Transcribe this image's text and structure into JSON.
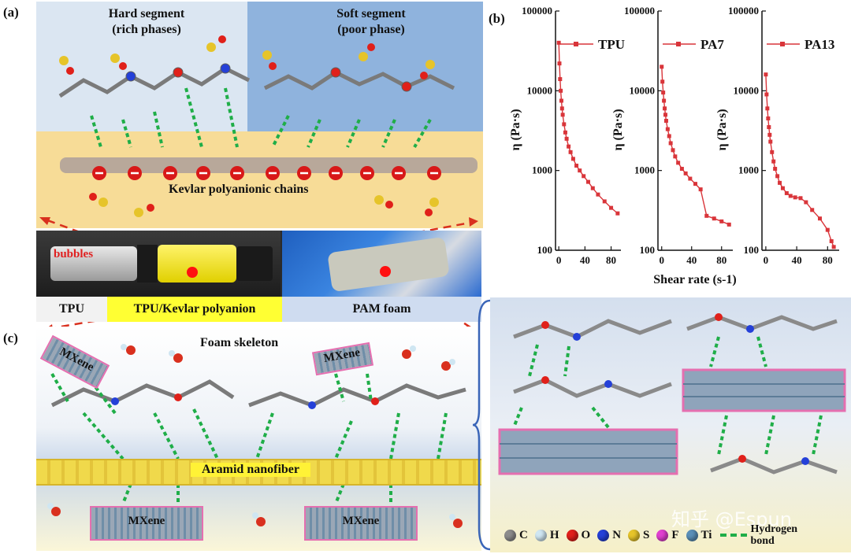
{
  "panel_labels": {
    "a": "(a)",
    "b": "(b)",
    "c": "(c)"
  },
  "panel_a": {
    "hard_segment": [
      "Hard segment",
      "(rich phases)"
    ],
    "soft_segment": [
      "Soft segment",
      "(poor phase)"
    ],
    "kevlar_label": "Kevlar polyanionic chains",
    "bubbles_label": "bubbles",
    "captions": [
      "TPU",
      "TPU/Kevlar polyanion",
      "PAM foam"
    ]
  },
  "panel_c": {
    "foam_skeleton": "Foam skeleton",
    "aramid": "Aramid nanofiber",
    "mxene": "MXene"
  },
  "legend": {
    "atoms": [
      {
        "symbol": "C",
        "color": "#8c8c8c"
      },
      {
        "symbol": "H",
        "color": "#cfe6f2"
      },
      {
        "symbol": "O",
        "color": "#e0201a"
      },
      {
        "symbol": "N",
        "color": "#2440d8"
      },
      {
        "symbol": "S",
        "color": "#e6c42a"
      },
      {
        "symbol": "F",
        "color": "#e040d0"
      },
      {
        "symbol": "Ti",
        "color": "#5a8fb8"
      }
    ],
    "hbond": "Hydrogen bond"
  },
  "watermark": "知乎 @Espun",
  "chart_data": {
    "type": "line",
    "xlabel": "Shear rate (s-1)",
    "ylabel": "η (Pa·s)",
    "yscale": "log",
    "ylim": [
      100,
      100000
    ],
    "xlim": [
      -5,
      95
    ],
    "ytick_labels": [
      "100000",
      "10000",
      "1000",
      "100"
    ],
    "xtick_labels": [
      "0",
      "40",
      "80"
    ],
    "color": "#d9353a",
    "series": [
      {
        "name": "TPU",
        "x": [
          0,
          1,
          2,
          3,
          4,
          5,
          6,
          8,
          10,
          12,
          15,
          18,
          22,
          27,
          32,
          38,
          45,
          52,
          60,
          70,
          80,
          90
        ],
        "y": [
          40000,
          22000,
          14000,
          10000,
          7500,
          6000,
          5000,
          3800,
          3000,
          2500,
          2000,
          1700,
          1400,
          1150,
          1000,
          850,
          720,
          600,
          500,
          410,
          340,
          290
        ]
      },
      {
        "name": "PA7",
        "x": [
          0,
          1,
          2,
          3,
          4,
          5,
          6,
          8,
          10,
          12,
          15,
          18,
          22,
          27,
          32,
          38,
          45,
          52,
          60,
          70,
          80,
          90
        ],
        "y": [
          20000,
          13000,
          9500,
          7500,
          6000,
          5000,
          4200,
          3300,
          2700,
          2200,
          1800,
          1500,
          1250,
          1050,
          920,
          790,
          680,
          580,
          270,
          250,
          230,
          210
        ]
      },
      {
        "name": "PA13",
        "x": [
          0,
          1,
          2,
          3,
          4,
          5,
          6,
          8,
          10,
          12,
          15,
          18,
          22,
          27,
          32,
          38,
          45,
          52,
          60,
          70,
          80,
          85,
          88
        ],
        "y": [
          16000,
          9000,
          6000,
          4500,
          3500,
          2800,
          2300,
          1700,
          1300,
          1050,
          850,
          700,
          600,
          520,
          480,
          460,
          450,
          400,
          320,
          250,
          180,
          130,
          110
        ]
      }
    ]
  }
}
